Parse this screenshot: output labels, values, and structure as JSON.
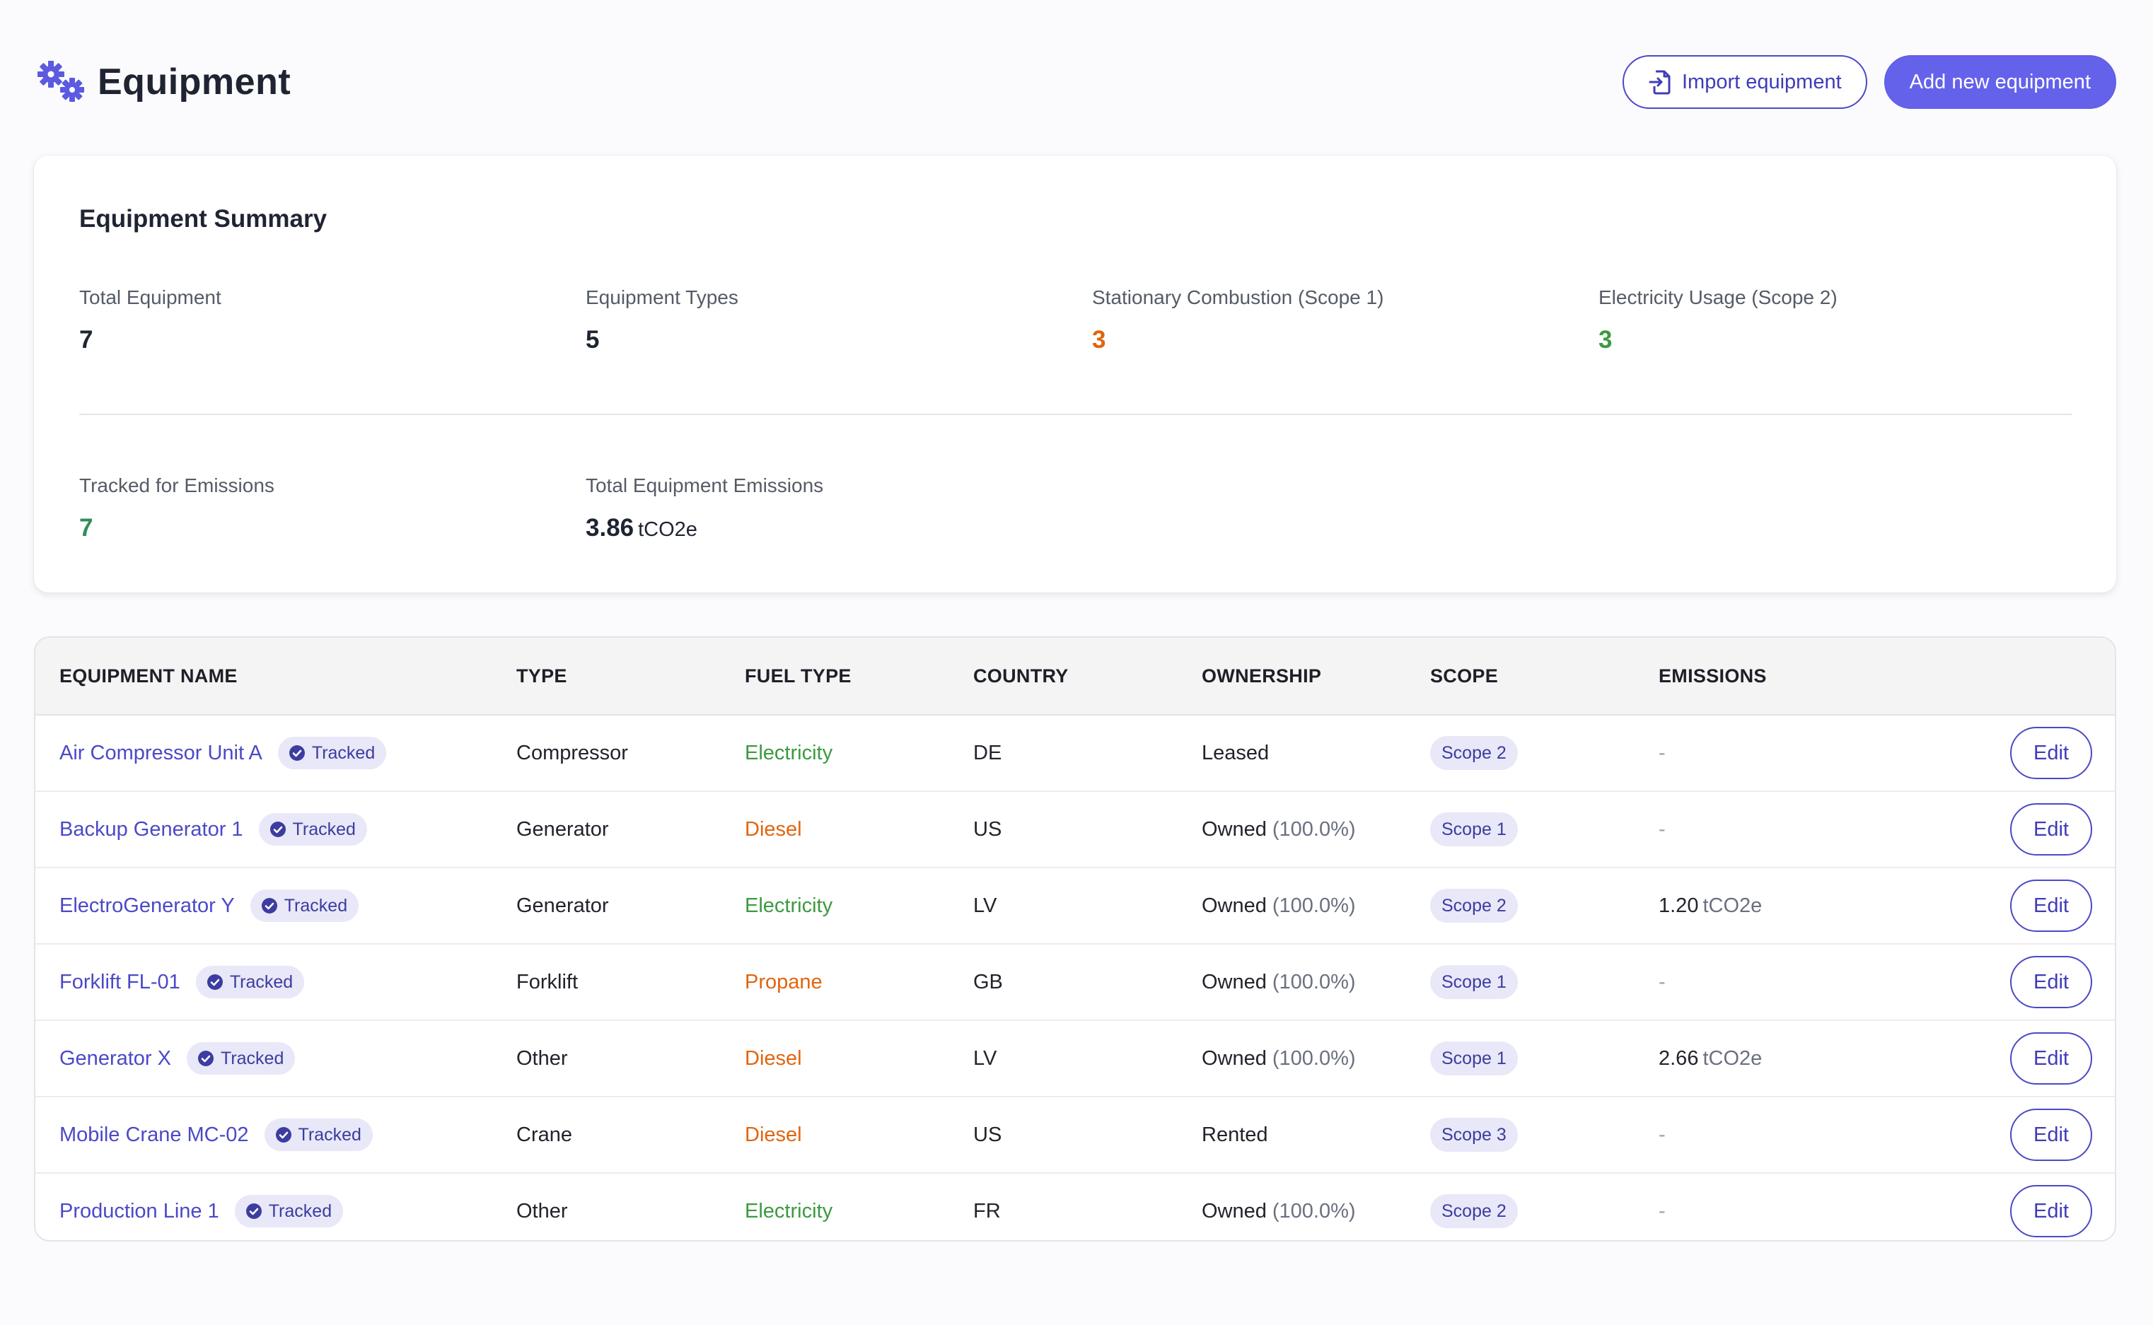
{
  "header": {
    "title": "Equipment",
    "import_label": "Import equipment",
    "add_label": "Add new equipment"
  },
  "summary": {
    "title": "Equipment Summary",
    "stats": [
      {
        "label": "Total Equipment",
        "value": "7"
      },
      {
        "label": "Equipment Types",
        "value": "5"
      },
      {
        "label": "Stationary Combustion (Scope 1)",
        "value": "3"
      },
      {
        "label": "Electricity Usage (Scope 2)",
        "value": "3"
      },
      {
        "label": "Tracked for Emissions",
        "value": "7"
      },
      {
        "label": "Total Equipment Emissions",
        "value": "3.86",
        "unit": "tCO2e"
      }
    ]
  },
  "table": {
    "columns": [
      "EQUIPMENT NAME",
      "TYPE",
      "FUEL TYPE",
      "COUNTRY",
      "OWNERSHIP",
      "SCOPE",
      "EMISSIONS"
    ],
    "tracked_label": "Tracked",
    "edit_label": "Edit",
    "rows": [
      {
        "name": "Air Compressor Unit A",
        "type": "Compressor",
        "fuel": "Electricity",
        "country": "DE",
        "ownership": "Leased",
        "ownership_pct": "",
        "scope": "Scope 2",
        "emissions": "-",
        "emissions_unit": ""
      },
      {
        "name": "Backup Generator 1",
        "type": "Generator",
        "fuel": "Diesel",
        "country": "US",
        "ownership": "Owned",
        "ownership_pct": "(100.0%)",
        "scope": "Scope 1",
        "emissions": "-",
        "emissions_unit": ""
      },
      {
        "name": "ElectroGenerator Y",
        "type": "Generator",
        "fuel": "Electricity",
        "country": "LV",
        "ownership": "Owned",
        "ownership_pct": "(100.0%)",
        "scope": "Scope 2",
        "emissions": "1.20",
        "emissions_unit": "tCO2e"
      },
      {
        "name": "Forklift FL-01",
        "type": "Forklift",
        "fuel": "Propane",
        "country": "GB",
        "ownership": "Owned",
        "ownership_pct": "(100.0%)",
        "scope": "Scope 1",
        "emissions": "-",
        "emissions_unit": ""
      },
      {
        "name": "Generator X",
        "type": "Other",
        "fuel": "Diesel",
        "country": "LV",
        "ownership": "Owned",
        "ownership_pct": "(100.0%)",
        "scope": "Scope 1",
        "emissions": "2.66",
        "emissions_unit": "tCO2e"
      },
      {
        "name": "Mobile Crane MC-02",
        "type": "Crane",
        "fuel": "Diesel",
        "country": "US",
        "ownership": "Rented",
        "ownership_pct": "",
        "scope": "Scope 3",
        "emissions": "-",
        "emissions_unit": ""
      },
      {
        "name": "Production Line 1",
        "type": "Other",
        "fuel": "Electricity",
        "country": "FR",
        "ownership": "Owned",
        "ownership_pct": "(100.0%)",
        "scope": "Scope 2",
        "emissions": "-",
        "emissions_unit": ""
      }
    ]
  },
  "colors": {
    "accent": "#6462eb",
    "link": "#4b49c7",
    "electricity": "#3c9a40",
    "fossil": "#e0650f"
  },
  "icons": {
    "page": "gears-icon",
    "import": "file-import-icon",
    "tracked": "check-circle-icon"
  }
}
